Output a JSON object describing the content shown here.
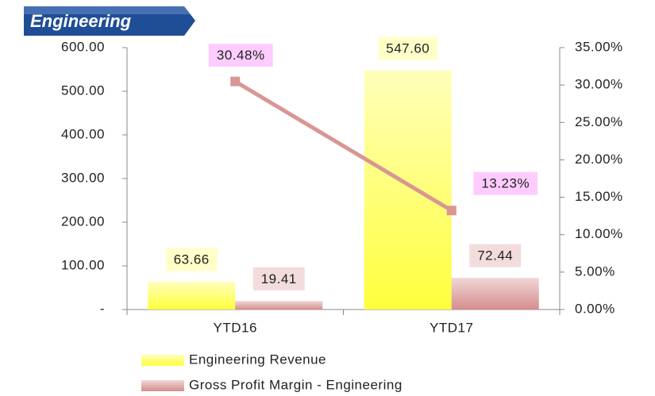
{
  "chart_data": {
    "type": "bar",
    "title": "Engineering",
    "categories": [
      "YTD16",
      "YTD17"
    ],
    "series": [
      {
        "name": "Engineering Revenue",
        "color": "#ffff3c",
        "values": [
          63.66,
          547.6
        ],
        "value_labels": [
          "63.66",
          "547.60"
        ],
        "label_color": "#ffffc8"
      },
      {
        "name": "Gross Profit Margin - Engineering",
        "color": "#d68c8c",
        "values": [
          19.41,
          72.44
        ],
        "label_color": "#f2dcdc"
      },
      {
        "type": "line",
        "axis": "y2",
        "color": "#d99694",
        "values": [
          30.48,
          13.23
        ],
        "value_labels": [
          "30.48%",
          "13.23%"
        ],
        "label_color": "#ffccff"
      }
    ],
    "ylim": [
      0,
      600
    ],
    "yticks": [
      {
        "value": 0,
        "label": "-"
      },
      {
        "value": 100,
        "label": "100.00"
      },
      {
        "value": 200,
        "label": "200.00"
      },
      {
        "value": 300,
        "label": "300.00"
      },
      {
        "value": 400,
        "label": "400.00"
      },
      {
        "value": 500,
        "label": "500.00"
      },
      {
        "value": 600,
        "label": "600.00"
      }
    ],
    "y2lim": [
      0,
      35
    ],
    "y2ticks": [
      {
        "value": 0,
        "label": "0.00%"
      },
      {
        "value": 5,
        "label": "5.00%"
      },
      {
        "value": 10,
        "label": "10.00%"
      },
      {
        "value": 15,
        "label": "15.00%"
      },
      {
        "value": 20,
        "label": "20.00%"
      },
      {
        "value": 25,
        "label": "25.00%"
      },
      {
        "value": 30,
        "label": "30.00%"
      },
      {
        "value": 35,
        "label": "35.00%"
      }
    ],
    "legend": "bottom"
  }
}
